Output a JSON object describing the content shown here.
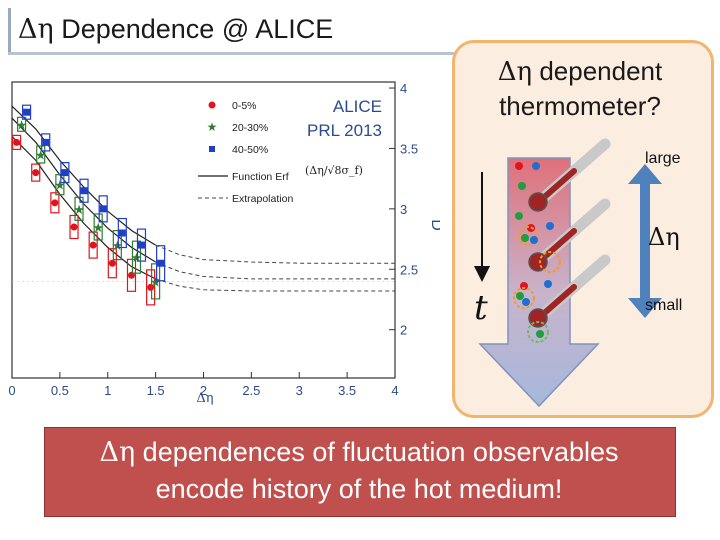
{
  "slide": {
    "title_symbol": "Δη",
    "title_rest": " Dependence @ ALICE",
    "ref_line1": "ALICE",
    "ref_line2": "PRL 2013",
    "thermo_line1_symbol": "Δη",
    "thermo_line1_rest": " dependent",
    "thermo_line2": "thermometer?",
    "label_large": "large",
    "label_small": "small",
    "label_deta": "Δη",
    "label_t": "t",
    "bottom_line1_symbol": "Δη",
    "bottom_line1_rest": " dependences of fluctuation observables",
    "bottom_line2": "encode history of the hot medium!"
  },
  "colors": {
    "series_0_5": "#e0141c",
    "series_20_30": "#2e7d32",
    "series_40_50": "#1f3fc8",
    "bottom_box": "#c0504d",
    "thermo_box_border": "#f2b56c",
    "thermo_box_fill": "#fbeee1",
    "arrow_fill": "#a6b8dc"
  },
  "chart_data": {
    "type": "scatter",
    "xlabel": "Δη",
    "ylabel": "D",
    "xlim": [
      0,
      4
    ],
    "ylim": [
      1.6,
      4.05
    ],
    "x_ticks": [
      "0",
      "0.5",
      "1",
      "1.5",
      "2",
      "2.5",
      "3",
      "3.5",
      "4"
    ],
    "y_ticks": [
      "2",
      "2.5",
      "3",
      "3.5",
      "4"
    ],
    "legend": [
      "0-5%",
      "20-30%",
      "40-50%",
      "Function Erf",
      "(Δη/√8σ_f)",
      "Extrapolation"
    ],
    "series": [
      {
        "name": "0-5%",
        "x": [
          0.1,
          0.3,
          0.5,
          0.7,
          0.9,
          1.1,
          1.3,
          1.5
        ],
        "y": [
          3.55,
          3.3,
          3.05,
          2.85,
          2.7,
          2.55,
          2.45,
          2.35
        ]
      },
      {
        "name": "20-30%",
        "x": [
          0.1,
          0.3,
          0.5,
          0.7,
          0.9,
          1.1,
          1.3,
          1.5
        ],
        "y": [
          3.7,
          3.45,
          3.2,
          3.0,
          2.85,
          2.7,
          2.6,
          2.4
        ]
      },
      {
        "name": "40-50%",
        "x": [
          0.1,
          0.3,
          0.5,
          0.7,
          0.9,
          1.1,
          1.3,
          1.5
        ],
        "y": [
          3.8,
          3.55,
          3.3,
          3.15,
          3.0,
          2.8,
          2.7,
          2.55
        ]
      }
    ],
    "fit_function_erf": [
      {
        "name": "0-5%",
        "x": [
          0.0,
          0.25,
          0.5,
          0.75,
          1.0,
          1.25,
          1.5,
          1.75,
          2.0,
          2.5,
          3.0,
          3.5,
          4.0
        ],
        "y": [
          3.6,
          3.4,
          3.12,
          2.88,
          2.68,
          2.52,
          2.42,
          2.36,
          2.33,
          2.32,
          2.32,
          2.32,
          2.32
        ]
      },
      {
        "name": "20-30%",
        "x": [
          0.0,
          0.25,
          0.5,
          0.75,
          1.0,
          1.25,
          1.5,
          1.75,
          2.0,
          2.5,
          3.0,
          3.5,
          4.0
        ],
        "y": [
          3.75,
          3.55,
          3.28,
          3.04,
          2.84,
          2.68,
          2.56,
          2.48,
          2.44,
          2.42,
          2.42,
          2.42,
          2.42
        ]
      },
      {
        "name": "40-50%",
        "x": [
          0.0,
          0.25,
          0.5,
          0.75,
          1.0,
          1.25,
          1.5,
          1.75,
          2.0,
          2.5,
          3.0,
          3.5,
          4.0
        ],
        "y": [
          3.85,
          3.66,
          3.4,
          3.18,
          2.98,
          2.82,
          2.7,
          2.62,
          2.58,
          2.56,
          2.55,
          2.55,
          2.55
        ]
      }
    ]
  }
}
